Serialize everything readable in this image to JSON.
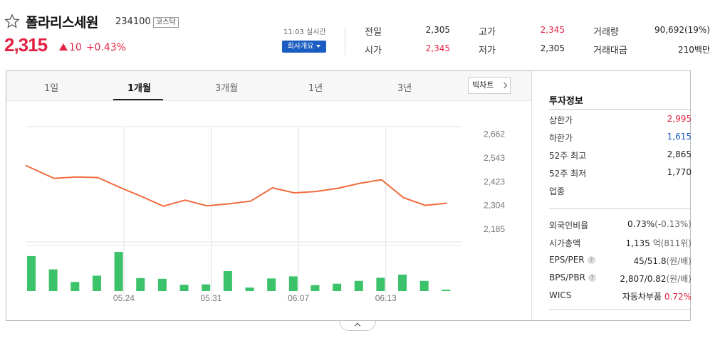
{
  "stock": {
    "name": "폴라리스세원",
    "code": "234100",
    "market": "코스닥",
    "price": "2,315",
    "change": "10",
    "change_pct": "+0.43%"
  },
  "realtime": "11:03 실시간",
  "company_button": "회사개요",
  "quote": {
    "prev_close_label": "전일",
    "prev_close": "2,305",
    "open_label": "시가",
    "open": "2,345",
    "high_label": "고가",
    "high": "2,345",
    "low_label": "저가",
    "low": "2,305",
    "volume_label": "거래량",
    "volume": "90,692(19%)",
    "amount_label": "거래대금",
    "amount": "210백만"
  },
  "tabs": [
    "1일",
    "1개월",
    "3개월",
    "1년",
    "3년"
  ],
  "active_tab": "1개월",
  "big_chart_button": "빅차트",
  "chart_data": {
    "type": "line",
    "x_tick_labels": [
      "05.24",
      "05.31",
      "06.07",
      "06.13"
    ],
    "y_tick_labels": [
      "2,662",
      "2,543",
      "2,423",
      "2,304",
      "2,185"
    ],
    "ylim": [
      2120,
      2700
    ],
    "series": [
      {
        "values": [
          2505,
          2440,
          2447,
          2444,
          2395,
          2349,
          2300,
          2330,
          2302,
          2312,
          2325,
          2392,
          2367,
          2374,
          2390,
          2415,
          2433,
          2343,
          2304,
          2315
        ]
      }
    ],
    "volume_bars": [
      1.0,
      0.62,
      0.26,
      0.44,
      1.12,
      0.37,
      0.35,
      0.18,
      0.19,
      0.57,
      0.1,
      0.36,
      0.42,
      0.17,
      0.21,
      0.29,
      0.38,
      0.47,
      0.29,
      0.04
    ],
    "grid": true,
    "line_color": "#f26b3e",
    "bar_color": "#3cc26a"
  },
  "invest_info": {
    "title": "투자정보",
    "upper_limit": {
      "label": "상한가",
      "value": "2,995"
    },
    "lower_limit": {
      "label": "하한가",
      "value": "1,615"
    },
    "high_52w": {
      "label": "52주 최고",
      "value": "2,865"
    },
    "low_52w": {
      "label": "52주 최저",
      "value": "1,770"
    },
    "industry": {
      "label": "업종"
    },
    "foreign_ratio": {
      "label": "외국인비율",
      "value": "0.73%",
      "sub": "(-0.13%)"
    },
    "market_cap": {
      "label": "시가총액",
      "value": "1,135",
      "unit": "억(811위)"
    },
    "eps_per": {
      "label": "EPS/PER",
      "value": "45/51.8",
      "unit": "(원/배)"
    },
    "bps_pbr": {
      "label": "BPS/PBR",
      "value": "2,807/0.82",
      "unit": "(원/배)"
    },
    "wics": {
      "label": "WICS",
      "value": "자동차부품",
      "pct": "0.72%"
    }
  },
  "help_mark": "?",
  "colors": {
    "up": "#e12343",
    "down": "#1a5cc1",
    "button": "#1a5cc1"
  }
}
